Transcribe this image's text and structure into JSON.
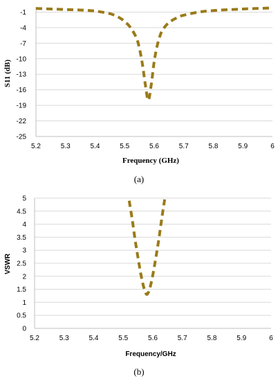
{
  "captions": [
    "(a)",
    "(b)"
  ],
  "chart_data": [
    {
      "type": "line",
      "title": "",
      "xlabel": "Frequency (GHz)",
      "ylabel": "S11 (dB)",
      "xlim": [
        5.2,
        6
      ],
      "ylim": [
        -25,
        0
      ],
      "xticks": [
        "5.2",
        "5.3",
        "5.4",
        "5.5",
        "5.6",
        "5.7",
        "5.8",
        "5.9",
        "6"
      ],
      "yticks": [
        "-1",
        "-4",
        "-7",
        "-10",
        "-13",
        "-16",
        "-19",
        "-22",
        "-25"
      ],
      "grid": "horizontal",
      "line_color": "#9a7a1a",
      "line_style": "dashed",
      "series": [
        {
          "x": [
            5.2,
            5.25,
            5.3,
            5.35,
            5.4,
            5.45,
            5.48,
            5.5,
            5.52,
            5.54,
            5.55,
            5.56,
            5.57,
            5.58,
            5.59,
            5.6,
            5.61,
            5.62,
            5.63,
            5.65,
            5.68,
            5.7,
            5.75,
            5.8,
            5.9,
            6.0
          ],
          "y": [
            -0.3,
            -0.4,
            -0.5,
            -0.6,
            -0.8,
            -1.3,
            -2.0,
            -2.8,
            -4.0,
            -6.0,
            -8.0,
            -11.0,
            -15.0,
            -18.0,
            -15.0,
            -10.5,
            -7.5,
            -5.5,
            -4.3,
            -3.0,
            -2.0,
            -1.6,
            -1.0,
            -0.7,
            -0.4,
            -0.2
          ]
        }
      ]
    },
    {
      "type": "line",
      "title": "",
      "xlabel": "Frequency/GHz",
      "ylabel": "VSWR",
      "xlim": [
        5.2,
        6
      ],
      "ylim": [
        0,
        5
      ],
      "xticks": [
        "5.2",
        "5.3",
        "5.4",
        "5.5",
        "5.6",
        "5.7",
        "5.8",
        "5.9",
        "6"
      ],
      "yticks": [
        "5",
        "4.5",
        "4",
        "3.5",
        "3",
        "2.5",
        "2",
        "1.5",
        "1",
        "0.5",
        "0"
      ],
      "grid": "horizontal",
      "line_color": "#9a7a1a",
      "line_style": "dashed",
      "series": [
        {
          "x": [
            5.52,
            5.53,
            5.54,
            5.55,
            5.56,
            5.57,
            5.58,
            5.59,
            5.6,
            5.61,
            5.62,
            5.63,
            5.64
          ],
          "y": [
            4.9,
            4.2,
            3.4,
            2.7,
            2.05,
            1.55,
            1.3,
            1.55,
            2.05,
            2.7,
            3.4,
            4.2,
            4.95
          ]
        }
      ]
    }
  ]
}
